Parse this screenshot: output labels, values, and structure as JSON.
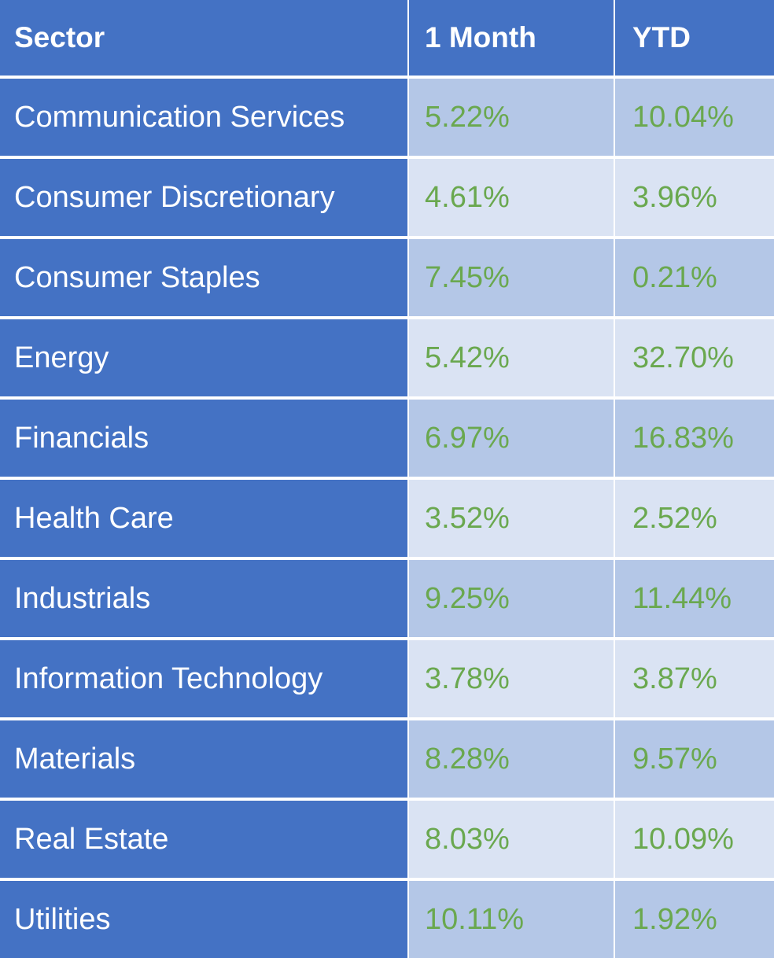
{
  "chart_data": {
    "type": "table",
    "columns": [
      "Sector",
      "1 Month",
      "YTD"
    ],
    "rows": [
      {
        "sector": "Communication Services",
        "one_month": "5.22%",
        "ytd": "10.04%"
      },
      {
        "sector": "Consumer Discretionary",
        "one_month": "4.61%",
        "ytd": "3.96%"
      },
      {
        "sector": "Consumer Staples",
        "one_month": "7.45%",
        "ytd": "0.21%"
      },
      {
        "sector": "Energy",
        "one_month": "5.42%",
        "ytd": "32.70%"
      },
      {
        "sector": "Financials",
        "one_month": "6.97%",
        "ytd": "16.83%"
      },
      {
        "sector": "Health Care",
        "one_month": "3.52%",
        "ytd": "2.52%"
      },
      {
        "sector": "Industrials",
        "one_month": "9.25%",
        "ytd": "11.44%"
      },
      {
        "sector": "Information Technology",
        "one_month": "3.78%",
        "ytd": "3.87%"
      },
      {
        "sector": "Materials",
        "one_month": "8.28%",
        "ytd": "9.57%"
      },
      {
        "sector": "Real Estate",
        "one_month": "8.03%",
        "ytd": "10.09%"
      },
      {
        "sector": "Utilities",
        "one_month": "10.11%",
        "ytd": "1.92%"
      }
    ]
  },
  "colors": {
    "header_bg": "#4472c4",
    "sector_bg": "#4472c4",
    "band_dark": "#b4c7e7",
    "band_light": "#dae3f3",
    "value_text": "#6aa84f",
    "header_text": "#ffffff"
  }
}
